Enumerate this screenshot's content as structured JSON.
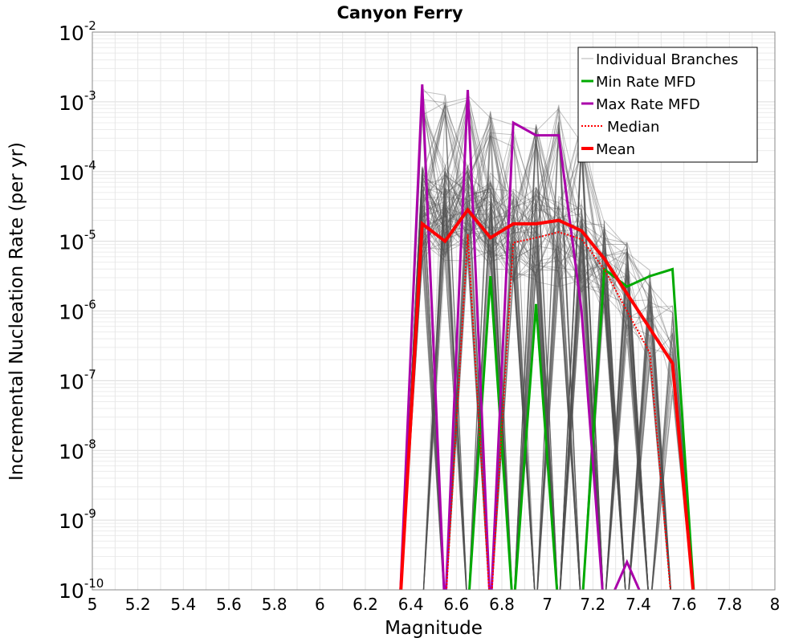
{
  "chart_data": {
    "type": "line",
    "title": "Canyon Ferry",
    "xlabel": "Magnitude",
    "ylabel": "Incremental Nucleation Rate (per yr)",
    "xlim": [
      5,
      8
    ],
    "ylim_log10": [
      -10,
      -2
    ],
    "yscale": "log",
    "grid": true,
    "x_ticks": [
      "5",
      "5.2",
      "5.4",
      "5.6",
      "5.8",
      "6",
      "6.2",
      "6.4",
      "6.6",
      "6.8",
      "7",
      "7.2",
      "7.4",
      "7.6",
      "7.8",
      "8"
    ],
    "y_ticks": [
      {
        "base": "10",
        "exp": "-2"
      },
      {
        "base": "10",
        "exp": "-3"
      },
      {
        "base": "10",
        "exp": "-4"
      },
      {
        "base": "10",
        "exp": "-5"
      },
      {
        "base": "10",
        "exp": "-6"
      },
      {
        "base": "10",
        "exp": "-7"
      },
      {
        "base": "10",
        "exp": "-8"
      },
      {
        "base": "10",
        "exp": "-9"
      },
      {
        "base": "10",
        "exp": "-10"
      }
    ],
    "legend_position": "top-right",
    "legend": [
      "Individual Branches",
      "Min Rate MFD",
      "Max Rate MFD",
      "Median",
      "Mean"
    ],
    "series": [
      {
        "name": "Min Rate MFD",
        "color": "#00aa00",
        "x": [
          6.55,
          6.65,
          6.75,
          6.85,
          6.95,
          7.05,
          7.15,
          7.25,
          7.35,
          7.45,
          7.55,
          7.65
        ],
        "log10_values": [
          -11,
          -11,
          -5.5,
          -11,
          -5.9,
          -11,
          -11,
          -5.4,
          -5.65,
          -5.5,
          -5.4,
          -11
        ]
      },
      {
        "name": "Max Rate MFD",
        "color": "#aa00aa",
        "x": [
          6.35,
          6.45,
          6.55,
          6.65,
          6.75,
          6.85,
          6.95,
          7.05,
          7.15,
          7.25,
          7.35,
          7.45
        ],
        "log10_values": [
          -11,
          -2.75,
          -11,
          -2.83,
          -11,
          -3.3,
          -3.48,
          -3.48,
          -6.0,
          -11,
          -9.6,
          -11
        ]
      },
      {
        "name": "Median",
        "color": "#ff0000",
        "x": [
          6.55,
          6.65,
          6.75,
          6.85,
          6.95,
          7.05,
          7.15,
          7.25,
          7.35,
          7.45,
          7.55
        ],
        "log10_values": [
          -11,
          -4.9,
          -11,
          -5.02,
          -4.95,
          -4.87,
          -4.97,
          -5.4,
          -6.0,
          -6.6,
          -11
        ]
      },
      {
        "name": "Mean",
        "color": "#ff0000",
        "x": [
          6.35,
          6.45,
          6.55,
          6.65,
          6.75,
          6.85,
          6.95,
          7.05,
          7.15,
          7.25,
          7.35,
          7.45,
          7.55,
          7.65
        ],
        "log10_values": [
          -11,
          -4.75,
          -5.0,
          -4.55,
          -4.95,
          -4.75,
          -4.75,
          -4.7,
          -4.85,
          -5.25,
          -5.75,
          -6.25,
          -6.75,
          -11
        ]
      }
    ]
  }
}
